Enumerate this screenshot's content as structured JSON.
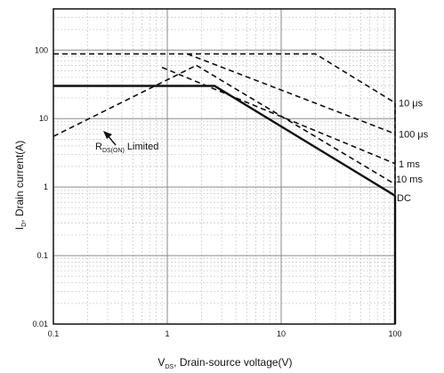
{
  "chart_data": {
    "type": "line",
    "x_scale": "log",
    "y_scale": "log",
    "xlim": [
      0.1,
      100
    ],
    "ylim": [
      0.01,
      400
    ],
    "grid": true,
    "x_ticks": [
      {
        "value": 0.1,
        "label": "0.1"
      },
      {
        "value": 1,
        "label": "1"
      },
      {
        "value": 10,
        "label": "10"
      },
      {
        "value": 100,
        "label": "100"
      }
    ],
    "y_ticks": [
      {
        "value": 0.01,
        "label": "0.01"
      },
      {
        "value": 0.1,
        "label": "0.1"
      },
      {
        "value": 1,
        "label": "1"
      },
      {
        "value": 10,
        "label": "10"
      },
      {
        "value": 100,
        "label": "100"
      }
    ],
    "xlabel_main": "V",
    "xlabel_sub": "DS",
    "xlabel_rest": ", Drain-source voltage(V)",
    "ylabel_main": "I",
    "ylabel_sub": "D",
    "ylabel_rest": ", Drain current(A)",
    "series": [
      {
        "name": "10 μs",
        "style": "dashed",
        "points": [
          [
            0.1,
            88
          ],
          [
            20,
            88
          ],
          [
            100,
            17
          ]
        ]
      },
      {
        "name": "100 μs",
        "style": "dashed",
        "points": [
          [
            1.5,
            88
          ],
          [
            100,
            6
          ]
        ]
      },
      {
        "name": "1 ms",
        "style": "dashed",
        "points": [
          [
            0.9,
            56
          ],
          [
            100,
            2.2
          ]
        ]
      },
      {
        "name": "10 ms",
        "style": "dashed",
        "points": [
          [
            1.8,
            60
          ],
          [
            100,
            1.1
          ]
        ]
      },
      {
        "name": "DC",
        "style": "solid",
        "points": [
          [
            0.1,
            30
          ],
          [
            2.6,
            30
          ],
          [
            100,
            0.75
          ]
        ]
      },
      {
        "name": "",
        "style": "dashed",
        "points": [
          [
            0.1,
            5.5
          ],
          [
            1.8,
            60
          ]
        ]
      }
    ],
    "annotations": {
      "rds_main": "R",
      "rds_sub": "DS(ON)",
      "rds_rest": " Limited"
    }
  }
}
